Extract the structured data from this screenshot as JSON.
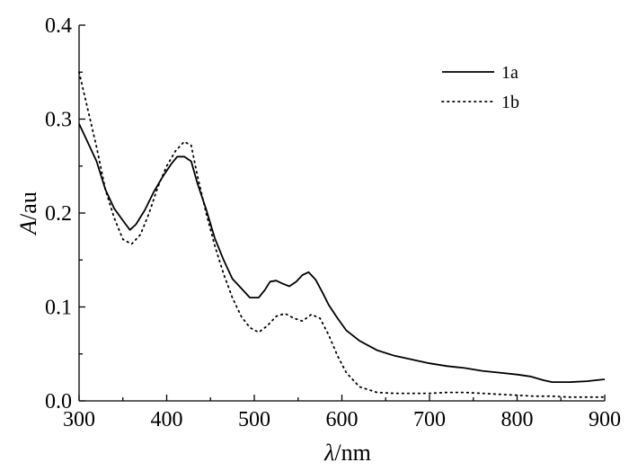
{
  "chart_data": {
    "type": "line",
    "xlabel_italic": "λ",
    "xlabel_unit": "/nm",
    "ylabel_italic": "A",
    "ylabel_unit": "/au",
    "xlim": [
      300,
      900
    ],
    "ylim": [
      0.0,
      0.4
    ],
    "x_ticks": [
      300,
      400,
      500,
      600,
      700,
      800,
      900
    ],
    "y_ticks": [
      0.0,
      0.1,
      0.2,
      0.3,
      0.4
    ],
    "y_tick_labels": [
      "0.0",
      "0.1",
      "0.2",
      "0.3",
      "0.4"
    ],
    "grid": false,
    "legend_position": "top-right",
    "series": [
      {
        "name": "1a",
        "style": "solid",
        "color": "#000000",
        "x": [
          300,
          310,
          320,
          330,
          340,
          350,
          358,
          365,
          375,
          385,
          395,
          405,
          412,
          420,
          428,
          435,
          445,
          455,
          465,
          475,
          485,
          495,
          505,
          512,
          518,
          525,
          532,
          540,
          548,
          555,
          562,
          570,
          578,
          585,
          595,
          605,
          620,
          640,
          660,
          680,
          700,
          720,
          740,
          760,
          780,
          800,
          815,
          830,
          840,
          860,
          880,
          890,
          900
        ],
        "y": [
          0.295,
          0.275,
          0.255,
          0.225,
          0.205,
          0.192,
          0.182,
          0.188,
          0.203,
          0.222,
          0.238,
          0.252,
          0.26,
          0.26,
          0.255,
          0.232,
          0.204,
          0.173,
          0.15,
          0.13,
          0.12,
          0.11,
          0.11,
          0.118,
          0.127,
          0.128,
          0.125,
          0.122,
          0.127,
          0.134,
          0.137,
          0.129,
          0.115,
          0.102,
          0.088,
          0.075,
          0.064,
          0.054,
          0.048,
          0.044,
          0.04,
          0.037,
          0.035,
          0.032,
          0.03,
          0.028,
          0.026,
          0.022,
          0.02,
          0.02,
          0.021,
          0.022,
          0.023
        ]
      },
      {
        "name": "1b",
        "style": "dotted",
        "color": "#000000",
        "x": [
          300,
          310,
          320,
          330,
          340,
          350,
          360,
          370,
          380,
          390,
          400,
          410,
          420,
          428,
          435,
          445,
          455,
          465,
          475,
          485,
          495,
          505,
          515,
          525,
          535,
          545,
          555,
          565,
          575,
          585,
          595,
          605,
          620,
          640,
          660,
          680,
          700,
          720,
          740,
          760,
          780,
          800,
          820,
          840,
          860,
          880,
          900
        ],
        "y": [
          0.35,
          0.31,
          0.27,
          0.225,
          0.195,
          0.172,
          0.167,
          0.177,
          0.2,
          0.228,
          0.25,
          0.266,
          0.276,
          0.272,
          0.24,
          0.2,
          0.165,
          0.135,
          0.11,
          0.09,
          0.078,
          0.073,
          0.08,
          0.09,
          0.093,
          0.088,
          0.085,
          0.092,
          0.088,
          0.07,
          0.048,
          0.03,
          0.015,
          0.009,
          0.008,
          0.008,
          0.008,
          0.009,
          0.009,
          0.008,
          0.007,
          0.006,
          0.005,
          0.005,
          0.004,
          0.004,
          0.004
        ]
      }
    ]
  }
}
